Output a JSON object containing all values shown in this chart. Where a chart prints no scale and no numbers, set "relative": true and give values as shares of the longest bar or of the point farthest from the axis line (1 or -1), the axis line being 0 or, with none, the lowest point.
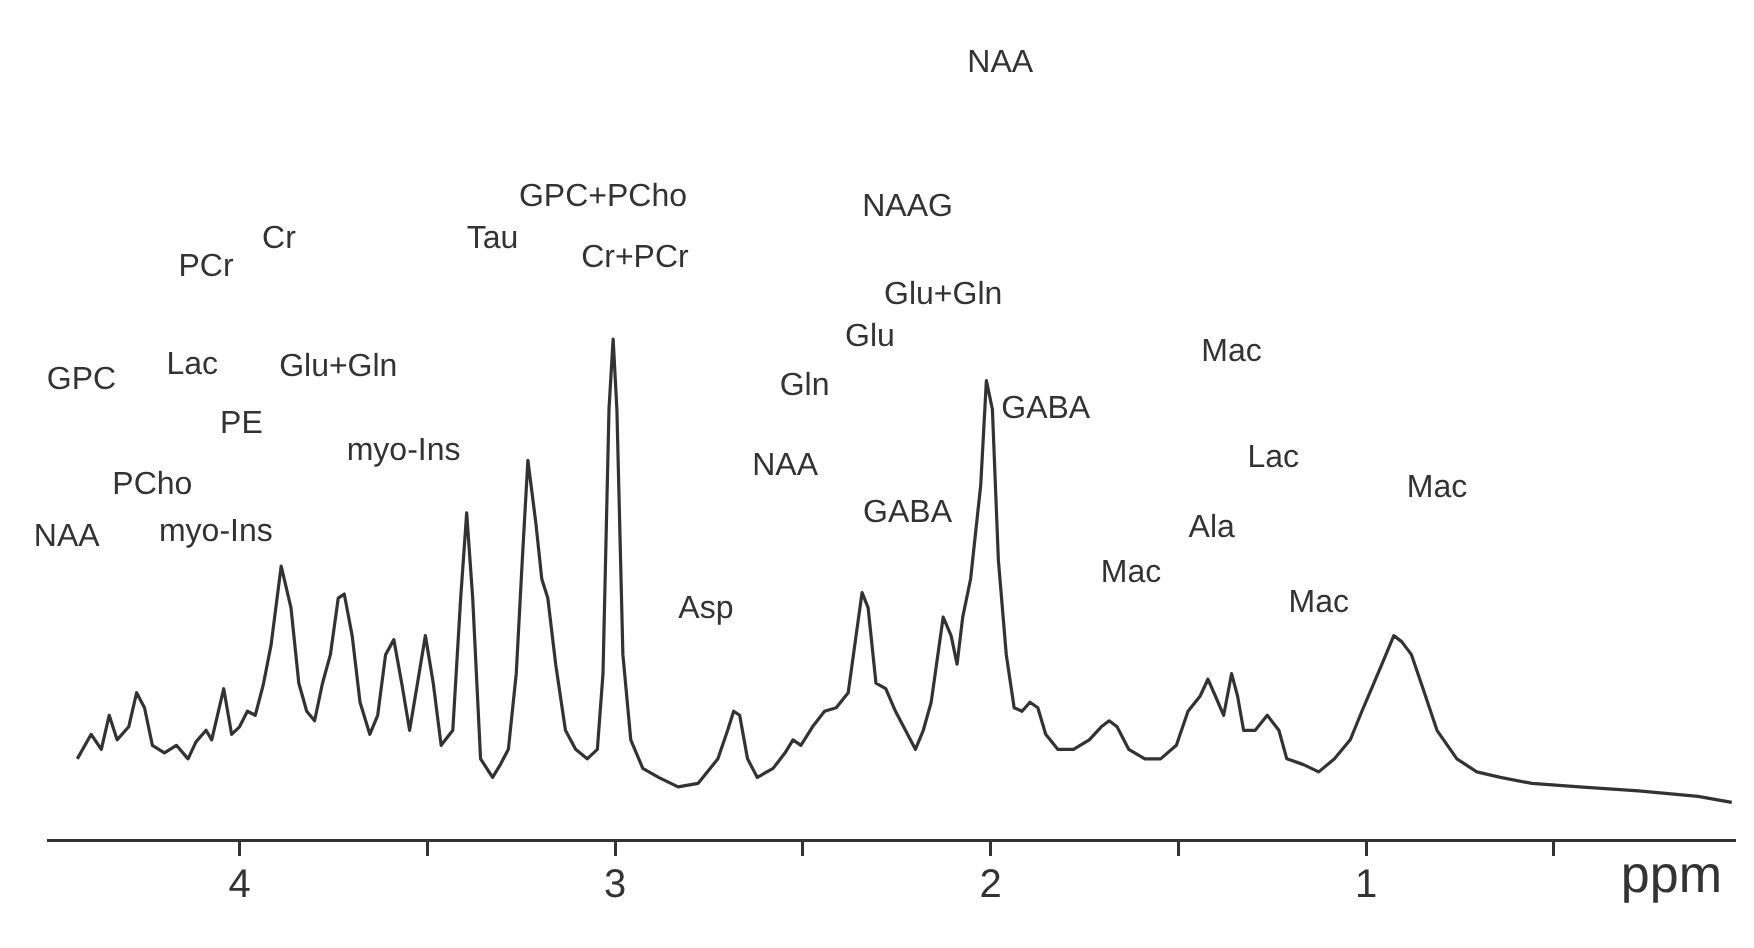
{
  "chart_data": {
    "type": "line",
    "relative": true,
    "xlabel": "ppm",
    "xlim": [
      4.51,
      0.02
    ],
    "xticks": [
      4,
      {
        "value": 3.5,
        "label": null
      },
      3,
      {
        "value": 2.5,
        "label": null
      },
      2,
      {
        "value": 1.5,
        "label": null
      },
      1,
      {
        "value": 0.5,
        "label": null
      }
    ],
    "grid": false,
    "legend": false,
    "marker": "none",
    "line_style": "solid",
    "x": [
      4.432,
      4.395,
      4.368,
      4.347,
      4.326,
      4.295,
      4.274,
      4.253,
      4.232,
      4.2,
      4.168,
      4.137,
      4.116,
      4.089,
      4.074,
      4.042,
      4.021,
      4.0,
      3.979,
      3.958,
      3.937,
      3.916,
      3.889,
      3.863,
      3.842,
      3.821,
      3.8,
      3.779,
      3.758,
      3.737,
      3.721,
      3.7,
      3.679,
      3.653,
      3.632,
      3.611,
      3.589,
      3.568,
      3.547,
      3.526,
      3.505,
      3.484,
      3.463,
      3.432,
      3.411,
      3.395,
      3.379,
      3.358,
      3.326,
      3.305,
      3.284,
      3.263,
      3.247,
      3.232,
      3.211,
      3.195,
      3.179,
      3.158,
      3.132,
      3.105,
      3.074,
      3.047,
      3.032,
      3.016,
      3.005,
      2.995,
      2.979,
      2.958,
      2.926,
      2.884,
      2.832,
      2.779,
      2.726,
      2.7,
      2.684,
      2.668,
      2.647,
      2.621,
      2.579,
      2.547,
      2.526,
      2.505,
      2.474,
      2.442,
      2.411,
      2.379,
      2.358,
      2.342,
      2.326,
      2.305,
      2.279,
      2.253,
      2.221,
      2.2,
      2.179,
      2.158,
      2.126,
      2.105,
      2.089,
      2.074,
      2.053,
      2.026,
      2.011,
      1.995,
      1.979,
      1.958,
      1.937,
      1.916,
      1.895,
      1.874,
      1.853,
      1.821,
      1.779,
      1.737,
      1.705,
      1.684,
      1.663,
      1.632,
      1.589,
      1.547,
      1.505,
      1.474,
      1.442,
      1.421,
      1.405,
      1.379,
      1.358,
      1.342,
      1.326,
      1.295,
      1.263,
      1.232,
      1.211,
      1.168,
      1.126,
      1.084,
      1.042,
      1.011,
      0.979,
      0.947,
      0.926,
      0.905,
      0.879,
      0.853,
      0.811,
      0.758,
      0.705,
      0.642,
      0.558,
      0.432,
      0.274,
      0.116,
      0.026
    ],
    "series": [
      {
        "color": "#333333",
        "values": [
          0.162,
          0.211,
          0.181,
          0.249,
          0.2,
          0.226,
          0.294,
          0.264,
          0.189,
          0.174,
          0.189,
          0.162,
          0.196,
          0.219,
          0.2,
          0.302,
          0.211,
          0.226,
          0.257,
          0.249,
          0.309,
          0.389,
          0.547,
          0.464,
          0.313,
          0.257,
          0.238,
          0.313,
          0.37,
          0.483,
          0.491,
          0.408,
          0.275,
          0.211,
          0.249,
          0.37,
          0.4,
          0.313,
          0.219,
          0.313,
          0.408,
          0.313,
          0.189,
          0.219,
          0.483,
          0.653,
          0.483,
          0.162,
          0.125,
          0.151,
          0.181,
          0.332,
          0.558,
          0.758,
          0.634,
          0.521,
          0.483,
          0.351,
          0.219,
          0.181,
          0.162,
          0.181,
          0.332,
          0.86,
          1,
          0.86,
          0.37,
          0.2,
          0.143,
          0.125,
          0.106,
          0.113,
          0.162,
          0.219,
          0.257,
          0.249,
          0.162,
          0.125,
          0.143,
          0.174,
          0.2,
          0.189,
          0.226,
          0.257,
          0.264,
          0.294,
          0.408,
          0.494,
          0.464,
          0.313,
          0.302,
          0.257,
          0.211,
          0.181,
          0.219,
          0.275,
          0.445,
          0.408,
          0.351,
          0.445,
          0.521,
          0.709,
          0.917,
          0.86,
          0.558,
          0.37,
          0.264,
          0.257,
          0.275,
          0.264,
          0.211,
          0.181,
          0.181,
          0.2,
          0.226,
          0.238,
          0.226,
          0.181,
          0.162,
          0.162,
          0.189,
          0.257,
          0.287,
          0.321,
          0.294,
          0.249,
          0.332,
          0.287,
          0.219,
          0.219,
          0.249,
          0.219,
          0.162,
          0.151,
          0.136,
          0.162,
          0.2,
          0.257,
          0.313,
          0.37,
          0.408,
          0.396,
          0.37,
          0.313,
          0.219,
          0.162,
          0.136,
          0.125,
          0.113,
          0.106,
          0.098,
          0.087,
          0.075
        ]
      }
    ],
    "annotations": [
      "NAA",
      "GPC",
      "PCho",
      "myo-Ins",
      "Lac",
      "PE",
      "PCr",
      "Cr",
      "Glu+Gln",
      "myo-Ins",
      "Tau",
      "GPC+PCho",
      "Cr+PCr",
      "Asp",
      "NAA",
      "Gln",
      "Glu",
      "GABA",
      "Glu+Gln",
      "NAAG",
      "NAA",
      "GABA",
      "Mac",
      "Ala",
      "Lac",
      "Mac",
      "Mac",
      "Mac"
    ]
  }
}
